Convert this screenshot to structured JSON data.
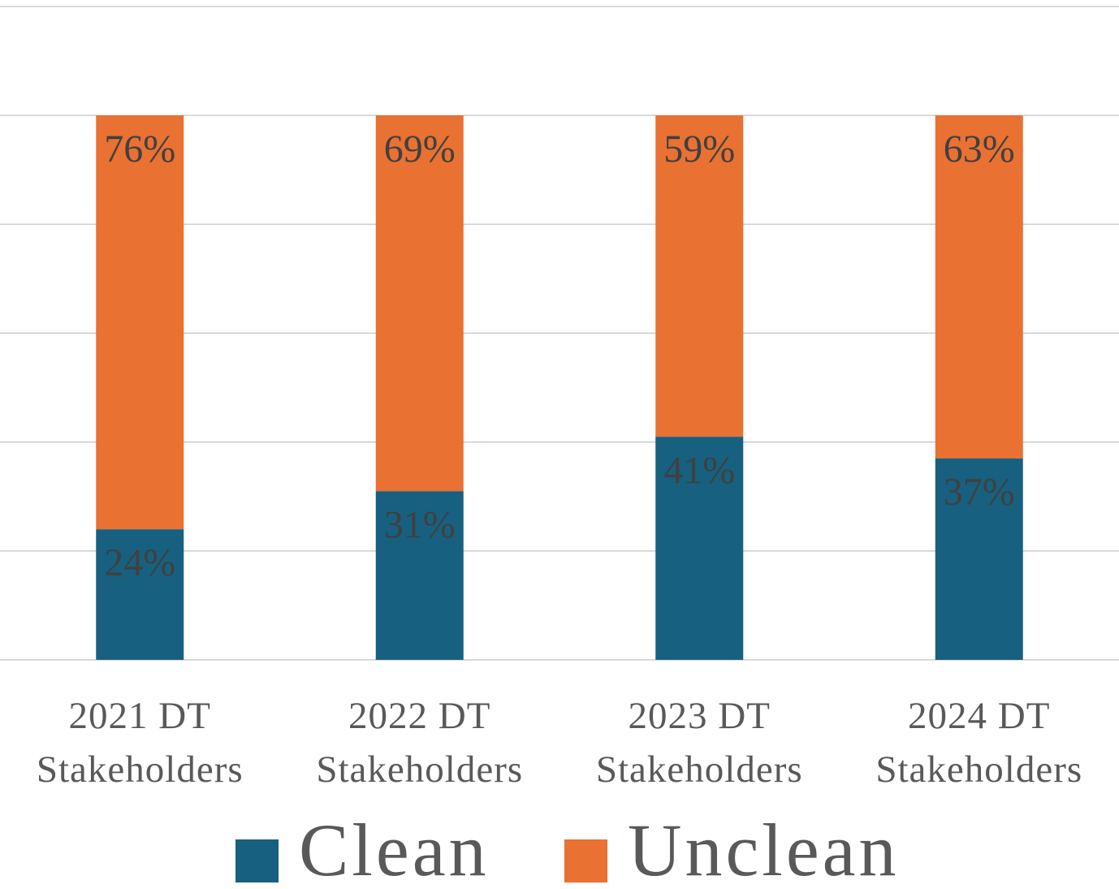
{
  "chart_data": {
    "type": "stacked_bar",
    "categories": [
      "2021 DT Stakeholders",
      "2022 DT Stakeholders",
      "2023 DT Stakeholders",
      "2024 DT Stakeholders"
    ],
    "series": [
      {
        "name": "Clean",
        "color": "#17607f",
        "values": [
          24,
          31,
          41,
          37
        ],
        "value_labels": [
          "24%",
          "31%",
          "41%",
          "37%"
        ]
      },
      {
        "name": "Unclean",
        "color": "#e97132",
        "values": [
          76,
          69,
          59,
          63
        ],
        "value_labels": [
          "76%",
          "69%",
          "59%",
          "63%"
        ]
      }
    ],
    "ylim": [
      0,
      120
    ],
    "yticks": [
      0,
      20,
      40,
      60,
      80,
      100,
      120
    ],
    "grid": true,
    "legend": "bottom"
  }
}
